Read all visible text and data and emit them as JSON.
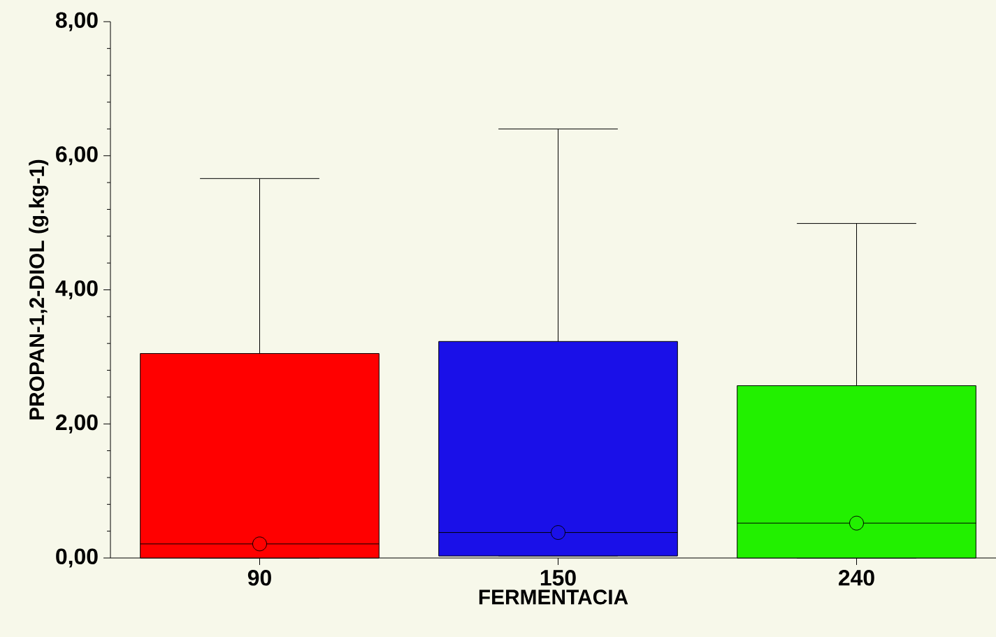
{
  "chart_data": {
    "type": "box",
    "xlabel": "FERMENTACIA",
    "ylabel": "PROPAN-1,2-DIOL (g.kg-1)",
    "categories": [
      "90",
      "150",
      "240"
    ],
    "colors": [
      "#ff0000",
      "#1a10e8",
      "#22f000"
    ],
    "boxes": [
      {
        "low": 0,
        "q1": 0,
        "median": 0.21,
        "q3": 3.05,
        "high": 5.66,
        "mean": 0.21
      },
      {
        "low": 0.03,
        "q1": 0.03,
        "median": 0.38,
        "q3": 3.23,
        "high": 6.4,
        "mean": 0.38
      },
      {
        "low": 0,
        "q1": 0,
        "median": 0.52,
        "q3": 2.57,
        "high": 4.99,
        "mean": 0.52
      }
    ],
    "ylim": [
      0,
      8
    ],
    "yticks": [
      {
        "value": 0,
        "label": "0,00"
      },
      {
        "value": 2,
        "label": "2,00"
      },
      {
        "value": 4,
        "label": "4,00"
      },
      {
        "value": 6,
        "label": "6,00"
      },
      {
        "value": 8,
        "label": "8,00"
      }
    ]
  }
}
